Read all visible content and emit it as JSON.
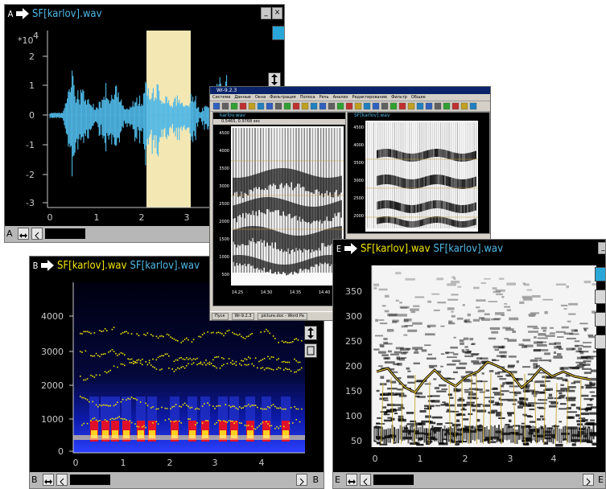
{
  "window_a": {
    "letter": "A",
    "title": "SF[karlov].wav",
    "exponent_label": "*10",
    "exponent_value": "4",
    "y_ticks": [
      "2",
      "1",
      "0",
      "-1",
      "-2",
      "-3"
    ],
    "x_ticks": [
      "0",
      "1",
      "2",
      "3"
    ],
    "scroll_letter": "A",
    "selection_color": "#f3e7b4",
    "wave_color": "#4fb8e6"
  },
  "window_mid": {
    "title": "Wr-9.2.3",
    "menu": [
      "Система",
      "Данные",
      "Окна",
      "Фильтрация",
      "Полоса",
      "Речь",
      "Анализ",
      "Редактирование",
      "Фильтр",
      "Общее"
    ],
    "sub_title_left": "karlov.wav",
    "sub_title_right": "SF[karlov].wav",
    "readout": "0.5465, 0.9768 sec",
    "y_ticks_left": [
      "4500",
      "4000",
      "3500",
      "3000",
      "2500",
      "2000",
      "1500",
      "1000",
      "500"
    ],
    "y_ticks_right": [
      "4500",
      "4000",
      "3500",
      "3000",
      "2500",
      "2000"
    ],
    "x_ticks_left": [
      "14.25",
      "14.30",
      "14.35",
      "14.40"
    ],
    "taskbar_items": [
      "Пуск",
      "Wr-9.2.3",
      "picture.doc - Word Pa"
    ]
  },
  "window_b": {
    "letter": "B",
    "title_a": "SF[karlov].wav",
    "title_b": "SF[karlov].wav",
    "y_ticks": [
      "4000",
      "3000",
      "2000",
      "1000",
      "0"
    ],
    "x_ticks": [
      "0",
      "1",
      "2",
      "3",
      "4"
    ],
    "scroll_letter": "B",
    "scroll_letter_right": "B",
    "pitch_color": "#f2e600"
  },
  "window_e": {
    "letter": "E",
    "title_a": "SF[karlov].wav",
    "title_b": "SF[karlov].wav",
    "y_ticks": [
      "350",
      "300",
      "250",
      "200",
      "150",
      "100",
      "50"
    ],
    "x_ticks": [
      "0",
      "1",
      "2",
      "3",
      "4"
    ],
    "scroll_letter": "E",
    "scroll_letter_right": "E"
  }
}
